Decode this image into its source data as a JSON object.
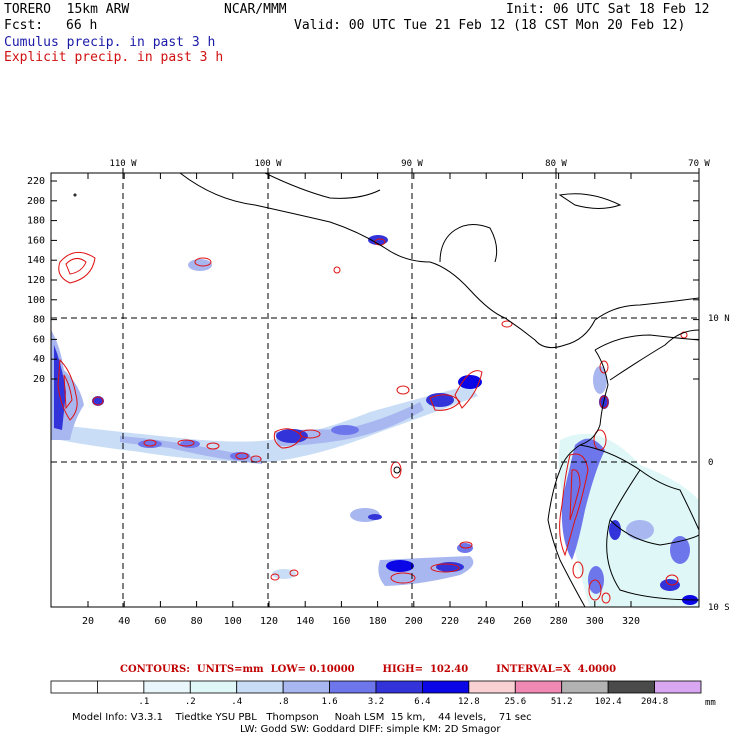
{
  "header": {
    "model": "TORERO  15km ARW",
    "org": "NCAR/MMM",
    "init": "Init: 06 UTC Sat 18 Feb 12",
    "fcst_label": "Fcst:",
    "fcst_value": "66 h",
    "valid": "Valid: 00 UTC Tue 21 Feb 12 (18 CST Mon 20 Feb 12)",
    "line_blue": "Cumulus precip. in past 3 h",
    "line_red": "Explicit precip. in past 3 h"
  },
  "map": {
    "top_longitudes": [
      "110 W",
      "100 W",
      "90 W",
      "80 W",
      "70 W"
    ],
    "right_latitudes": [
      "10 N",
      "0",
      "10 S"
    ],
    "y_ticks": [
      "220",
      "200",
      "180",
      "160",
      "140",
      "120",
      "100",
      "80",
      "60",
      "40",
      "20"
    ],
    "x_ticks": [
      "20",
      "40",
      "60",
      "80",
      "100",
      "120",
      "140",
      "160",
      "180",
      "200",
      "220",
      "240",
      "260",
      "280",
      "300",
      "320"
    ],
    "colors": {
      "contour": "#e01010",
      "coast": "#000000",
      "grid": "#000000"
    }
  },
  "contours_line": "CONTOURS:  UNITS=mm  LOW= 0.10000        HIGH=  102.40        INTERVAL=X  4.0000",
  "colorbar": {
    "labels": [
      ".1",
      ".2",
      ".4",
      ".8",
      "1.6",
      "3.2",
      "6.4",
      "12.8",
      "25.6",
      "51.2",
      "102.4",
      "204.8"
    ],
    "unit": "mm",
    "colors": [
      "#ffffff",
      "#ffffff",
      "#e9f6fb",
      "#dff7f7",
      "#c9def6",
      "#a9b7f0",
      "#6e76ec",
      "#3234d9",
      "#0a06e6",
      "#f9d1d4",
      "#f08ab5",
      "#b2b2b2",
      "#4a4a4a",
      "#d9a6f2"
    ]
  },
  "model_info": {
    "line1": "Model Info: V3.3.1    Tiedtke YSU PBL   Thompson     Noah LSM  15 km,    44 levels,    71 sec",
    "line2": "LW: Godd SW: Goddard DIFF: simple KM: 2D Smagor"
  }
}
